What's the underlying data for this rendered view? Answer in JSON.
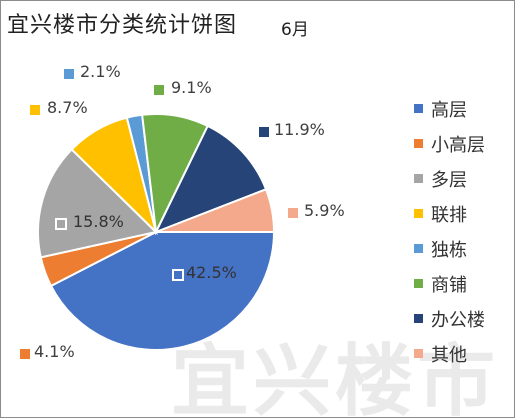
{
  "header": {
    "title": "宜兴楼市分类统计饼图",
    "subtitle": "6月"
  },
  "watermark": "宜兴楼市",
  "chart_data": {
    "type": "pie",
    "title": "宜兴楼市分类统计饼图",
    "subtitle": "6月",
    "legend_position": "right",
    "slices": [
      {
        "name": "高层",
        "value": 42.5,
        "label": "42.5%",
        "color": "#4472C4"
      },
      {
        "name": "小高层",
        "value": 4.1,
        "label": "4.1%",
        "color": "#ED7D31"
      },
      {
        "name": "多层",
        "value": 15.8,
        "label": "15.8%",
        "color": "#A5A5A5"
      },
      {
        "name": "联排",
        "value": 8.7,
        "label": "8.7%",
        "color": "#FFC000"
      },
      {
        "name": "独栋",
        "value": 2.1,
        "label": "2.1%",
        "color": "#5B9BD5"
      },
      {
        "name": "商铺",
        "value": 9.1,
        "label": "9.1%",
        "color": "#70AD47"
      },
      {
        "name": "办公楼",
        "value": 11.9,
        "label": "11.9%",
        "color": "#264478"
      },
      {
        "name": "其他",
        "value": 5.9,
        "label": "5.9%",
        "color": "#F4A98C"
      }
    ]
  }
}
